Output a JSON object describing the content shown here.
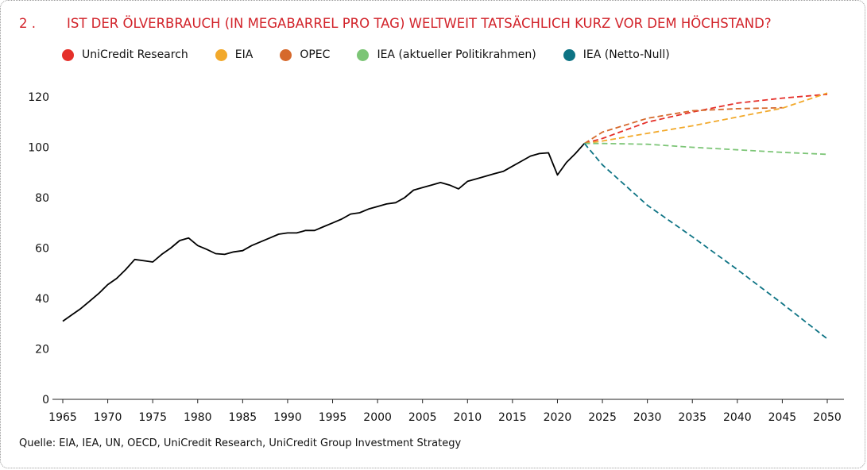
{
  "title": {
    "number": "2 .",
    "text": "IST DER ÖLVERBRAUCH (IN MEGABARREL PRO TAG) WELTWEIT TATSÄCHLICH KURZ VOR DEM HÖCHSTAND?"
  },
  "source": "Quelle: EIA, IEA, UN, OECD, UniCredit Research, UniCredit Group Investment Strategy",
  "chart_data": {
    "type": "line",
    "title": "IST DER ÖLVERBRAUCH (IN MEGABARREL PRO TAG) WELTWEIT TATSÄCHLICH KURZ VOR DEM HÖCHSTAND?",
    "xlabel": "",
    "ylabel": "",
    "xlim": [
      1965,
      2050
    ],
    "ylim": [
      0,
      120
    ],
    "x_ticks": [
      "1965",
      "1970",
      "1975",
      "1980",
      "1985",
      "1990",
      "1995",
      "2000",
      "2005",
      "2010",
      "2015",
      "2020",
      "2025",
      "2030",
      "2035",
      "2040",
      "2045",
      "2050"
    ],
    "y_ticks": [
      "0",
      "20",
      "40",
      "60",
      "80",
      "100",
      "120"
    ],
    "grid": false,
    "legend_position": "top",
    "series": [
      {
        "name": "",
        "color": "#000000",
        "style": "solid",
        "x": [
          1965,
          1966,
          1967,
          1968,
          1969,
          1970,
          1971,
          1972,
          1973,
          1974,
          1975,
          1976,
          1977,
          1978,
          1979,
          1980,
          1981,
          1982,
          1983,
          1984,
          1985,
          1986,
          1987,
          1988,
          1989,
          1990,
          1991,
          1992,
          1993,
          1994,
          1995,
          1996,
          1997,
          1998,
          1999,
          2000,
          2001,
          2002,
          2003,
          2004,
          2005,
          2006,
          2007,
          2008,
          2009,
          2010,
          2011,
          2012,
          2013,
          2014,
          2015,
          2016,
          2017,
          2018,
          2019,
          2020,
          2021,
          2022,
          2023
        ],
        "y": [
          31,
          33.5,
          36,
          39,
          42,
          45.5,
          48,
          51.5,
          55.5,
          55,
          54.5,
          57.5,
          60,
          63,
          64,
          61,
          59.5,
          57.8,
          57.5,
          58.5,
          59,
          61,
          62.5,
          64,
          65.5,
          66,
          66,
          67,
          67,
          68.5,
          70,
          71.5,
          73.5,
          74,
          75.5,
          76.5,
          77.5,
          78,
          80,
          83,
          84,
          85,
          86,
          85,
          83.5,
          86.5,
          87.5,
          88.5,
          89.5,
          90.5,
          92.5,
          94.5,
          96.5,
          97.5,
          97.8,
          89,
          94,
          97.5,
          101.5
        ]
      },
      {
        "name": "UniCredit Research",
        "color": "#e5302a",
        "style": "dashed",
        "x": [
          2023,
          2025,
          2030,
          2035,
          2040,
          2045,
          2050
        ],
        "y": [
          101.5,
          103.5,
          110,
          114,
          117.5,
          119.5,
          121
        ]
      },
      {
        "name": "EIA",
        "color": "#f2a92b",
        "style": "dashed",
        "x": [
          2023,
          2025,
          2030,
          2035,
          2040,
          2045,
          2050
        ],
        "y": [
          101.5,
          102.5,
          105.5,
          108.5,
          112,
          115.5,
          121.5
        ]
      },
      {
        "name": "OPEC",
        "color": "#d6692c",
        "style": "dashed",
        "x": [
          2023,
          2025,
          2030,
          2035,
          2040,
          2045
        ],
        "y": [
          101.5,
          106,
          111.5,
          114.5,
          115.3,
          115.7
        ]
      },
      {
        "name": "IEA (aktueller Politikrahmen)",
        "color": "#7cc576",
        "style": "dashed",
        "x": [
          2023,
          2025,
          2030,
          2035,
          2040,
          2045,
          2050
        ],
        "y": [
          101.5,
          101.5,
          101.2,
          100,
          99,
          98,
          97.2
        ]
      },
      {
        "name": "IEA (Netto-Null)",
        "color": "#0d7384",
        "style": "dashed",
        "x": [
          2023,
          2025,
          2030,
          2035,
          2040,
          2045,
          2050
        ],
        "y": [
          101.5,
          93,
          77,
          64.5,
          51.5,
          38,
          24
        ]
      }
    ]
  }
}
